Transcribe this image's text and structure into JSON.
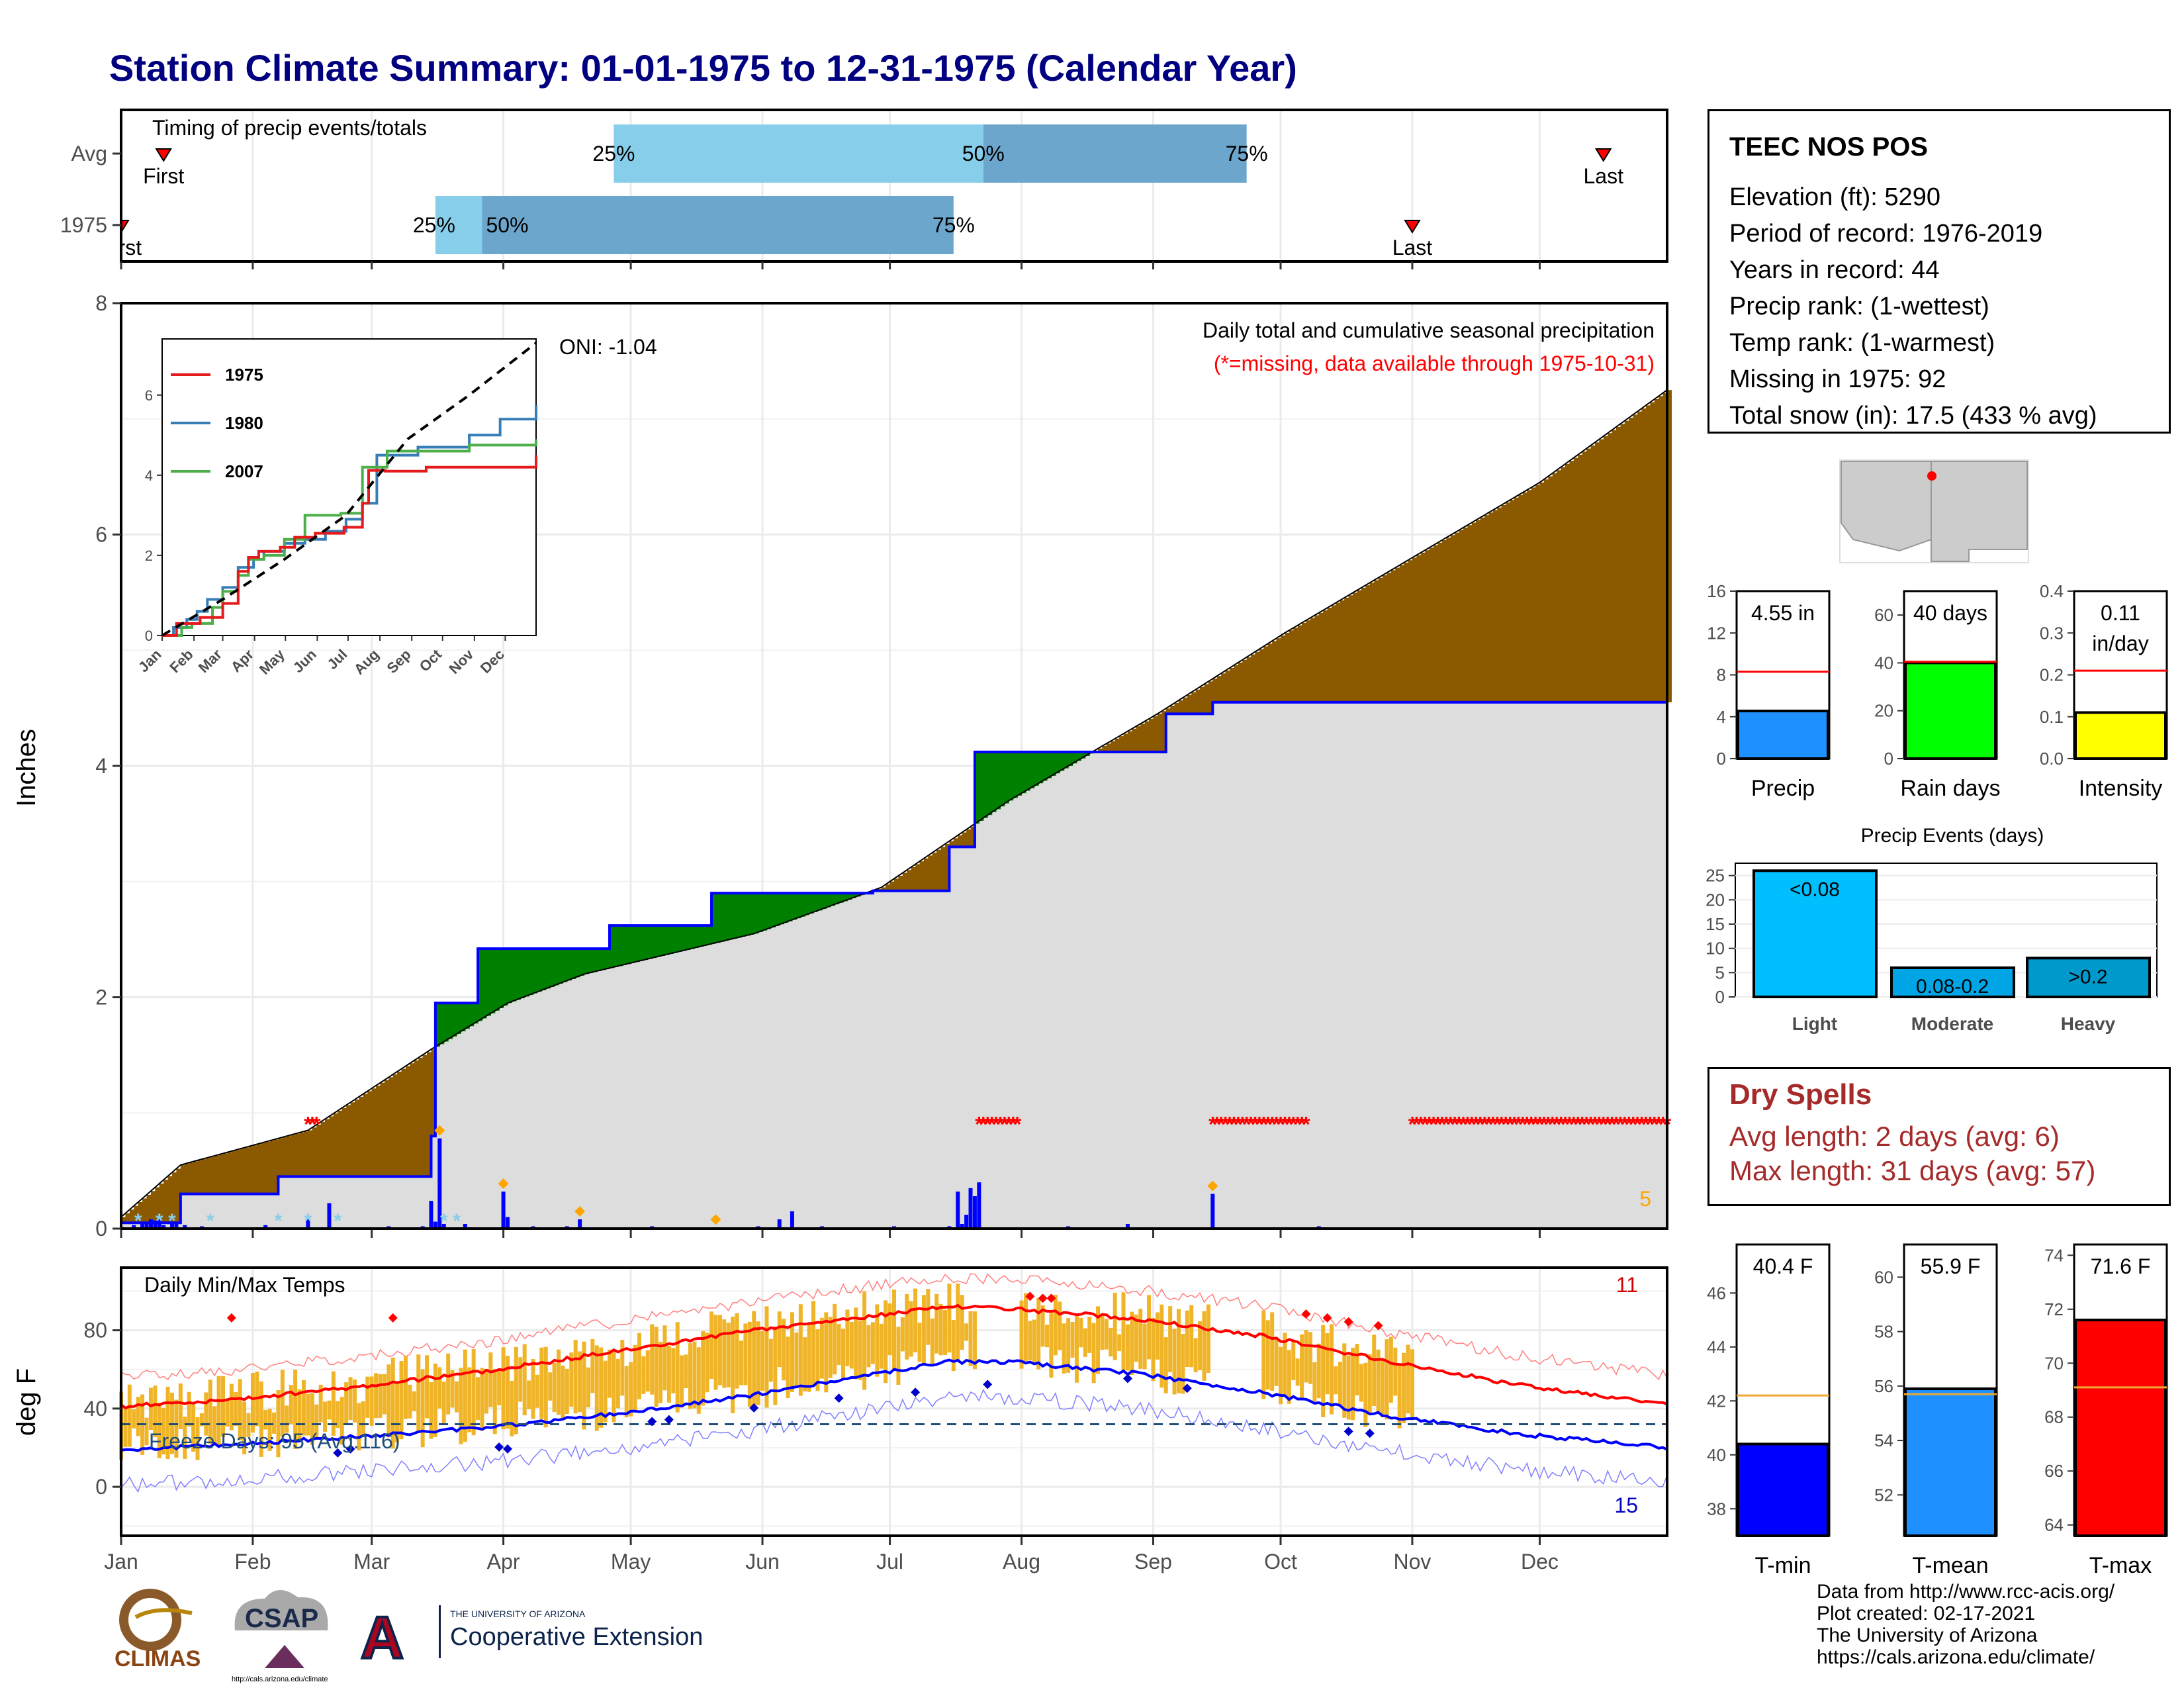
{
  "title": "Station Climate Summary: 01-01-1975 to 12-31-1975 (Calendar Year)",
  "timing_panel": {
    "title": "Timing of precip events/totals",
    "rows": [
      {
        "label": "Avg",
        "first_doy": 11,
        "q25_doy": 117,
        "q50_doy": 204,
        "q75_doy": 266,
        "last_doy": 350,
        "first_label": "First",
        "last_label": "Last"
      },
      {
        "label": "1975",
        "first_doy": 1,
        "q25_doy": 75,
        "q50_doy": 86,
        "q75_doy": 197,
        "last_doy": 305,
        "first_label": "First",
        "last_label": "Last"
      }
    ],
    "pct_labels": [
      "25%",
      "50%",
      "75%"
    ],
    "colors": {
      "light": "#87ceeb",
      "dark": "#6ca6cd",
      "marker": "#ff0000"
    }
  },
  "precip_panel": {
    "ylabel": "Inches",
    "y_ticks": [
      "0",
      "2",
      "4",
      "6",
      "8"
    ],
    "ylim": [
      0,
      8
    ],
    "title": "Daily total and cumulative seasonal precipitation",
    "missing_note": "(*=missing, data available through 1975-10-31)",
    "oni_label": "ONI: -1.04",
    "count_label": "5",
    "colors": {
      "avg_above": "#8b5a00",
      "obs_above": "#008000",
      "bg_fill": "#dddddd",
      "obs_line": "#0000ff",
      "missing": "#ff0000",
      "snow": "#87ceeb",
      "daily_bar": "#0000ff",
      "extreme": "#ffa500"
    }
  },
  "inset": {
    "y_ticks": [
      "0",
      "2",
      "4",
      "6"
    ],
    "x_ticks": [
      "Jan",
      "Feb",
      "Mar",
      "Apr",
      "May",
      "Jun",
      "Jul",
      "Aug",
      "Sep",
      "Oct",
      "Nov",
      "Dec"
    ],
    "legend": [
      {
        "name": "1975",
        "color": "#e41a1c"
      },
      {
        "name": "1980",
        "color": "#377eb8"
      },
      {
        "name": "2007",
        "color": "#4daf4a"
      }
    ]
  },
  "temp_panel": {
    "ylabel": "deg F",
    "title": "Daily Min/Max Temps",
    "y_ticks": [
      "0",
      "40",
      "80"
    ],
    "freeze_label": "Freeze Days: 95 (Avg:116)",
    "hot_count": "11",
    "cold_count": "15",
    "colors": {
      "bar": "#f0b428",
      "max_line": "#ff0000",
      "min_line": "#0000ff",
      "freeze": "#1f4e79"
    }
  },
  "months": [
    "Jan",
    "Feb",
    "Mar",
    "Apr",
    "May",
    "Jun",
    "Jul",
    "Aug",
    "Sep",
    "Oct",
    "Nov",
    "Dec"
  ],
  "station": {
    "name": "TEEC NOS POS",
    "lines": [
      "Elevation (ft): 5290",
      "Period of record: 1976-2019",
      "Years in record: 44",
      "Precip rank:  (1-wettest)",
      "Temp rank:  (1-warmest)",
      "Missing in 1975: 92",
      "Total snow (in): 17.5 (433 % avg)"
    ]
  },
  "chart_data": [
    {
      "type": "bar",
      "title": "",
      "categories": [
        "Precip",
        "Rain days",
        "Intensity"
      ],
      "values": [
        4.55,
        40,
        0.11
      ],
      "averages": [
        8.3,
        40.5,
        0.21
      ],
      "value_labels": [
        "4.55 in",
        "40 days",
        "0.11\nin/day"
      ],
      "y_ticks": [
        [
          "0",
          "4",
          "8",
          "12",
          "16"
        ],
        [
          "0",
          "20",
          "40",
          "60"
        ],
        [
          "0.0",
          "0.1",
          "0.2",
          "0.3",
          "0.4"
        ]
      ],
      "ylims": [
        [
          0,
          16
        ],
        [
          0,
          70
        ],
        [
          0,
          0.4
        ]
      ],
      "colors": [
        "#1e90ff",
        "#00ff00",
        "#ffff00"
      ]
    },
    {
      "type": "bar",
      "title": "Precip Events (days)",
      "categories": [
        "Light",
        "Moderate",
        "Heavy"
      ],
      "values": [
        26,
        6,
        8
      ],
      "value_labels": [
        "<0.08",
        "0.08-0.2",
        ">0.2"
      ],
      "y_ticks": [
        "0",
        "5",
        "10",
        "15",
        "20",
        "25"
      ],
      "ylim": [
        0,
        27
      ],
      "colors": [
        "#00bfff",
        "#00a5e6",
        "#0099cc"
      ]
    },
    {
      "type": "bar",
      "title": "",
      "categories": [
        "T-min",
        "T-mean",
        "T-max"
      ],
      "values": [
        40.4,
        55.9,
        71.6
      ],
      "averages": [
        42.2,
        55.7,
        69.1
      ],
      "value_labels": [
        "40.4 F",
        "55.9 F",
        "71.6 F"
      ],
      "y_ticks": [
        [
          "38",
          "40",
          "42",
          "44",
          "46"
        ],
        [
          "52",
          "54",
          "56",
          "58",
          "60"
        ],
        [
          "64",
          "66",
          "68",
          "70",
          "72",
          "74"
        ]
      ],
      "ylims": [
        [
          37,
          47.8
        ],
        [
          50.5,
          61.2
        ],
        [
          63.6,
          74.4
        ]
      ],
      "colors": [
        "#0000ff",
        "#1e90ff",
        "#ff0000"
      ]
    },
    {
      "type": "area",
      "title": "Daily total and cumulative seasonal precipitation",
      "xlabel": "",
      "ylabel": "Inches",
      "ylim": [
        0,
        8
      ],
      "series": [
        {
          "name": "",
          "x_doy": [
            1,
            15,
            45,
            74,
            92,
            110,
            150,
            180,
            210,
            245,
            275,
            305,
            335,
            365
          ],
          "values": [
            0.1,
            0.55,
            0.85,
            1.55,
            1.95,
            2.2,
            2.55,
            2.95,
            3.7,
            4.45,
            5.15,
            5.8,
            6.45,
            7.25
          ]
        },
        {
          "name": "1975",
          "x_doy": [
            1,
            15,
            38,
            74,
            75,
            85,
            116,
            140,
            178,
            196,
            202,
            217,
            247,
            258,
            365
          ],
          "values": [
            0.05,
            0.3,
            0.45,
            0.8,
            1.95,
            2.42,
            2.62,
            2.9,
            2.92,
            3.3,
            4.12,
            4.12,
            4.45,
            4.55,
            4.55
          ]
        }
      ],
      "missing_ranges": [
        [
          45,
          47
        ],
        [
          203,
          212
        ],
        [
          258,
          280
        ],
        [
          305,
          365
        ]
      ]
    },
    {
      "type": "line",
      "title": "Daily Min/Max Temps",
      "ylabel": "deg F",
      "ylim": [
        -25,
        112
      ],
      "series": [
        {
          "name": "",
          "x_doy": [
            1,
            30,
            60,
            90,
            120,
            150,
            180,
            196,
            210,
            240,
            270,
            300,
            330,
            365
          ],
          "values": [
            41,
            45,
            52,
            60,
            70,
            80,
            88,
            92,
            91,
            86,
            77,
            64,
            52,
            42
          ]
        },
        {
          "name": "",
          "x_doy": [
            1,
            30,
            60,
            90,
            120,
            150,
            180,
            196,
            210,
            240,
            270,
            300,
            330,
            365
          ],
          "values": [
            19,
            22,
            26,
            31,
            38,
            47,
            58,
            64,
            64,
            58,
            48,
            36,
            27,
            20
          ]
        }
      ],
      "freeze_threshold": 32
    }
  ],
  "credits": [
    "Data from http://www.rcc-acis.org/",
    "Plot created: 02-17-2021",
    "The University of Arizona",
    "https://cals.arizona.edu/climate/"
  ],
  "logos": {
    "climas": "CLIMAS",
    "csap": "CSAP",
    "csap_url": "http://cals.arizona.edu/climate",
    "ua_top": "THE UNIVERSITY OF ARIZONA",
    "ua_main": "Cooperative Extension",
    "ua_letter": "A"
  }
}
